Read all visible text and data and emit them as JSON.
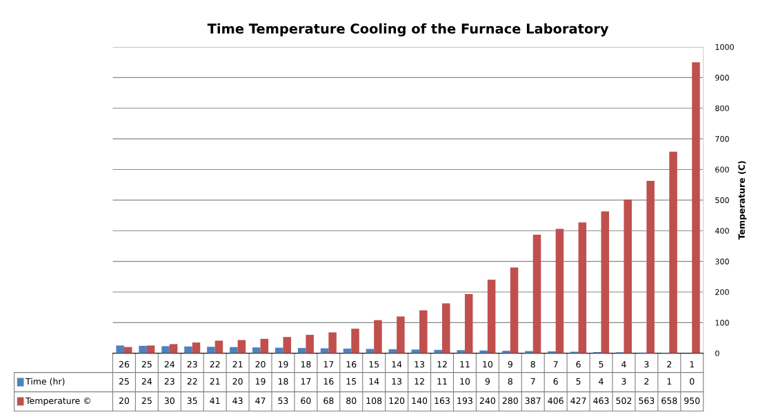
{
  "chart_data": {
    "type": "bar",
    "title": "Time Temperature Cooling of the Furnace Laboratory",
    "y2label": "Temperature (C)",
    "categories": [
      "26",
      "25",
      "24",
      "23",
      "22",
      "21",
      "20",
      "19",
      "18",
      "17",
      "16",
      "15",
      "14",
      "13",
      "12",
      "11",
      "10",
      "9",
      "8",
      "7",
      "6",
      "5",
      "4",
      "3",
      "2",
      "1"
    ],
    "series": [
      {
        "name": "Time (hr)",
        "color": "#4f81bd",
        "axis": "y2",
        "values": [
          25,
          24,
          23,
          22,
          21,
          20,
          19,
          18,
          17,
          16,
          15,
          14,
          13,
          12,
          11,
          10,
          9,
          8,
          7,
          6,
          5,
          4,
          3,
          2,
          1,
          0
        ]
      },
      {
        "name": "Temperature ©",
        "color": "#c0504d",
        "axis": "y2",
        "values": [
          20,
          25,
          30,
          35,
          41,
          43,
          47,
          53,
          60,
          68,
          80,
          108,
          120,
          140,
          163,
          193,
          240,
          280,
          387,
          406,
          427,
          463,
          502,
          563,
          658,
          950
        ]
      }
    ],
    "y2lim": [
      0,
      1000
    ],
    "y2ticks": [
      0,
      100,
      200,
      300,
      400,
      500,
      600,
      700,
      800,
      900,
      1000
    ],
    "grid": "y",
    "legend": "bottom",
    "data_labels": true
  }
}
